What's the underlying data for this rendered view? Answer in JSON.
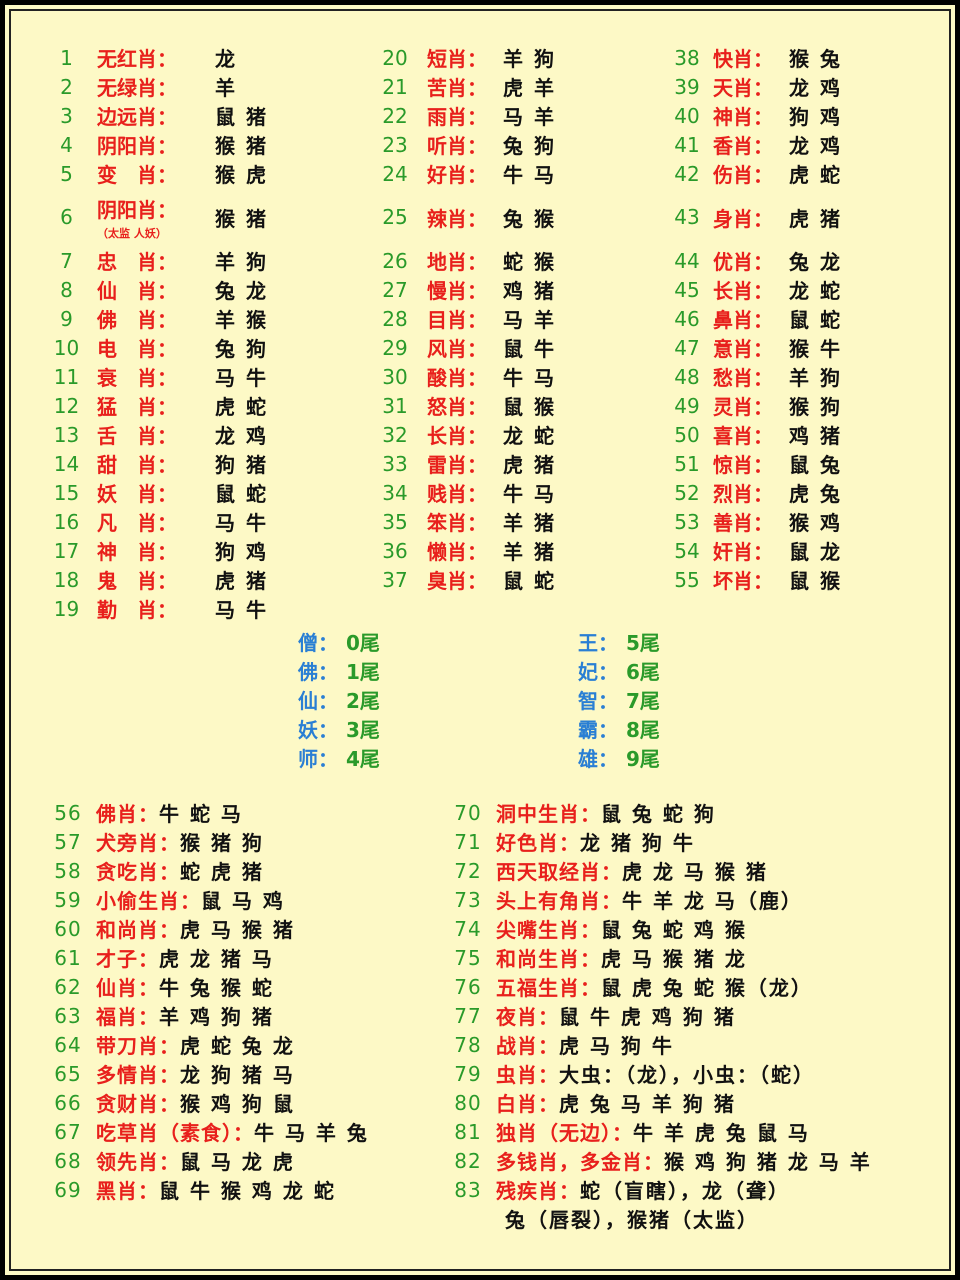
{
  "colors": {
    "number": "#2a9a2a",
    "label": "#e8201c",
    "value": "#111111",
    "tail_key": "#2a7fd4",
    "background": "#fdf9c6"
  },
  "top_columns": [
    [
      {
        "n": "1",
        "label": "无红肖：",
        "value": "龙"
      },
      {
        "n": "2",
        "label": "无绿肖：",
        "value": "羊"
      },
      {
        "n": "3",
        "label": "边远肖：",
        "value": "鼠 猪"
      },
      {
        "n": "4",
        "label": "阴阳肖：",
        "value": "猴 猪"
      },
      {
        "n": "5",
        "label": "变　肖：",
        "value": "猴 虎"
      },
      {
        "n": "6",
        "label": "阴阳肖：",
        "note": "（太监 人妖）",
        "value": "猴 猪"
      },
      {
        "n": "7",
        "label": "忠　肖：",
        "value": "羊 狗"
      },
      {
        "n": "8",
        "label": "仙　肖：",
        "value": "兔 龙"
      },
      {
        "n": "9",
        "label": "佛　肖：",
        "value": "羊 猴"
      },
      {
        "n": "10",
        "label": "电　肖：",
        "value": "兔 狗"
      },
      {
        "n": "11",
        "label": "衰　肖：",
        "value": "马 牛"
      },
      {
        "n": "12",
        "label": "猛　肖：",
        "value": "虎 蛇"
      },
      {
        "n": "13",
        "label": "舌　肖：",
        "value": "龙 鸡"
      },
      {
        "n": "14",
        "label": "甜　肖：",
        "value": "狗 猪"
      },
      {
        "n": "15",
        "label": "妖　肖：",
        "value": "鼠 蛇"
      },
      {
        "n": "16",
        "label": "凡　肖：",
        "value": "马 牛"
      },
      {
        "n": "17",
        "label": "神　肖：",
        "value": "狗 鸡"
      },
      {
        "n": "18",
        "label": "鬼　肖：",
        "value": "虎 猪"
      },
      {
        "n": "19",
        "label": "勤　肖：",
        "value": "马 牛"
      }
    ],
    [
      {
        "n": "20",
        "label": "短肖：",
        "value": "羊 狗"
      },
      {
        "n": "21",
        "label": "苦肖：",
        "value": "虎 羊"
      },
      {
        "n": "22",
        "label": "雨肖：",
        "value": "马 羊"
      },
      {
        "n": "23",
        "label": "听肖：",
        "value": "兔 狗"
      },
      {
        "n": "24",
        "label": "好肖：",
        "value": "牛 马"
      },
      {
        "n": "25",
        "label": "辣肖：",
        "value": "兔 猴"
      },
      {
        "n": "26",
        "label": "地肖：",
        "value": "蛇 猴"
      },
      {
        "n": "27",
        "label": "慢肖：",
        "value": "鸡 猪"
      },
      {
        "n": "28",
        "label": "目肖：",
        "value": "马 羊"
      },
      {
        "n": "29",
        "label": "风肖：",
        "value": "鼠 牛"
      },
      {
        "n": "30",
        "label": "酸肖：",
        "value": "牛 马"
      },
      {
        "n": "31",
        "label": "怒肖：",
        "value": "鼠 猴"
      },
      {
        "n": "32",
        "label": "长肖：",
        "value": "龙 蛇"
      },
      {
        "n": "33",
        "label": "雷肖：",
        "value": "虎 猪"
      },
      {
        "n": "34",
        "label": "贱肖：",
        "value": "牛 马"
      },
      {
        "n": "35",
        "label": "笨肖：",
        "value": "羊 猪"
      },
      {
        "n": "36",
        "label": "懒肖：",
        "value": "羊 猪"
      },
      {
        "n": "37",
        "label": "臭肖：",
        "value": "鼠 蛇"
      }
    ],
    [
      {
        "n": "38",
        "label": "快肖：",
        "value": "猴 兔"
      },
      {
        "n": "39",
        "label": "天肖：",
        "value": "龙 鸡"
      },
      {
        "n": "40",
        "label": "神肖：",
        "value": "狗 鸡"
      },
      {
        "n": "41",
        "label": "香肖：",
        "value": "龙 鸡"
      },
      {
        "n": "42",
        "label": "伤肖：",
        "value": "虎 蛇"
      },
      {
        "n": "43",
        "label": "身肖：",
        "value": "虎 猪"
      },
      {
        "n": "44",
        "label": "优肖：",
        "value": "兔 龙"
      },
      {
        "n": "45",
        "label": "长肖：",
        "value": "龙 蛇"
      },
      {
        "n": "46",
        "label": "鼻肖：",
        "value": "鼠 蛇"
      },
      {
        "n": "47",
        "label": "意肖：",
        "value": "猴 牛"
      },
      {
        "n": "48",
        "label": "愁肖：",
        "value": "羊 狗"
      },
      {
        "n": "49",
        "label": "灵肖：",
        "value": "猴 狗"
      },
      {
        "n": "50",
        "label": "喜肖：",
        "value": "鸡 猪"
      },
      {
        "n": "51",
        "label": "惊肖：",
        "value": "鼠 兔"
      },
      {
        "n": "52",
        "label": "烈肖：",
        "value": "虎 兔"
      },
      {
        "n": "53",
        "label": "善肖：",
        "value": "猴 鸡"
      },
      {
        "n": "54",
        "label": "奸肖：",
        "value": "鼠 龙"
      },
      {
        "n": "55",
        "label": "坏肖：",
        "value": "鼠 猴"
      }
    ]
  ],
  "tails": [
    [
      {
        "k": "僧：",
        "v": "0尾"
      },
      {
        "k": "佛：",
        "v": "1尾"
      },
      {
        "k": "仙：",
        "v": "2尾"
      },
      {
        "k": "妖：",
        "v": "3尾"
      },
      {
        "k": "师：",
        "v": "4尾"
      }
    ],
    [
      {
        "k": "王：",
        "v": "5尾"
      },
      {
        "k": "妃：",
        "v": "6尾"
      },
      {
        "k": "智：",
        "v": "7尾"
      },
      {
        "k": "霸：",
        "v": "8尾"
      },
      {
        "k": "雄：",
        "v": "9尾"
      }
    ]
  ],
  "bottom_columns": [
    [
      {
        "n": "56",
        "label": "佛肖：",
        "value": "牛 蛇 马"
      },
      {
        "n": "57",
        "label": "犬旁肖：",
        "value": "猴 猪 狗"
      },
      {
        "n": "58",
        "label": "贪吃肖：",
        "value": "蛇 虎 猪"
      },
      {
        "n": "59",
        "label": "小偷生肖：",
        "value": "鼠 马 鸡"
      },
      {
        "n": "60",
        "label": "和尚肖：",
        "value": "虎 马 猴 猪"
      },
      {
        "n": "61",
        "label": "才子：",
        "value": "虎 龙 猪 马"
      },
      {
        "n": "62",
        "label": "仙肖：",
        "value": "牛 兔 猴 蛇"
      },
      {
        "n": "63",
        "label": "福肖：",
        "value": "羊 鸡 狗 猪"
      },
      {
        "n": "64",
        "label": "带刀肖：",
        "value": "虎 蛇 兔 龙"
      },
      {
        "n": "65",
        "label": "多情肖：",
        "value": "龙 狗 猪 马"
      },
      {
        "n": "66",
        "label": "贪财肖：",
        "value": "猴 鸡 狗 鼠"
      },
      {
        "n": "67",
        "label": "吃草肖（素食）：",
        "value": "牛 马 羊 兔"
      },
      {
        "n": "68",
        "label": "领先肖：",
        "value": "鼠 马 龙 虎"
      },
      {
        "n": "69",
        "label": "黑肖：",
        "value": "鼠 牛 猴 鸡 龙 蛇"
      }
    ],
    [
      {
        "n": "70",
        "label": "洞中生肖：",
        "value": "鼠 兔 蛇 狗"
      },
      {
        "n": "71",
        "label": "好色肖：",
        "value": "龙 猪 狗 牛"
      },
      {
        "n": "72",
        "label": "西天取经肖：",
        "value": "虎 龙 马 猴 猪"
      },
      {
        "n": "73",
        "label": "头上有角肖：",
        "value": "牛 羊 龙 马（鹿）"
      },
      {
        "n": "74",
        "label": "尖嘴生肖：",
        "value": "鼠 兔 蛇 鸡 猴"
      },
      {
        "n": "75",
        "label": "和尚生肖：",
        "value": "虎 马 猴 猪 龙"
      },
      {
        "n": "76",
        "label": "五福生肖：",
        "value": "鼠 虎 兔 蛇 猴（龙）"
      },
      {
        "n": "77",
        "label": "夜肖：",
        "value": "鼠 牛 虎 鸡 狗 猪"
      },
      {
        "n": "78",
        "label": "战肖：",
        "value": "虎 马 狗 牛"
      },
      {
        "n": "79",
        "label": "虫肖：",
        "value": "大虫：（龙），小虫：（蛇）"
      },
      {
        "n": "80",
        "label": "白肖：",
        "value": "虎 兔 马 羊 狗 猪"
      },
      {
        "n": "81",
        "label": "独肖（无边）：",
        "value": "牛 羊 虎 兔 鼠 马"
      },
      {
        "n": "82",
        "label": "多钱肖，多金肖：",
        "value": "猴 鸡 狗 猪 龙 马 羊"
      },
      {
        "n": "83",
        "label": "残疾肖：",
        "value": "蛇（盲瞎），龙（聋）",
        "cont": "兔（唇裂），猴猪（太监）"
      }
    ]
  ]
}
